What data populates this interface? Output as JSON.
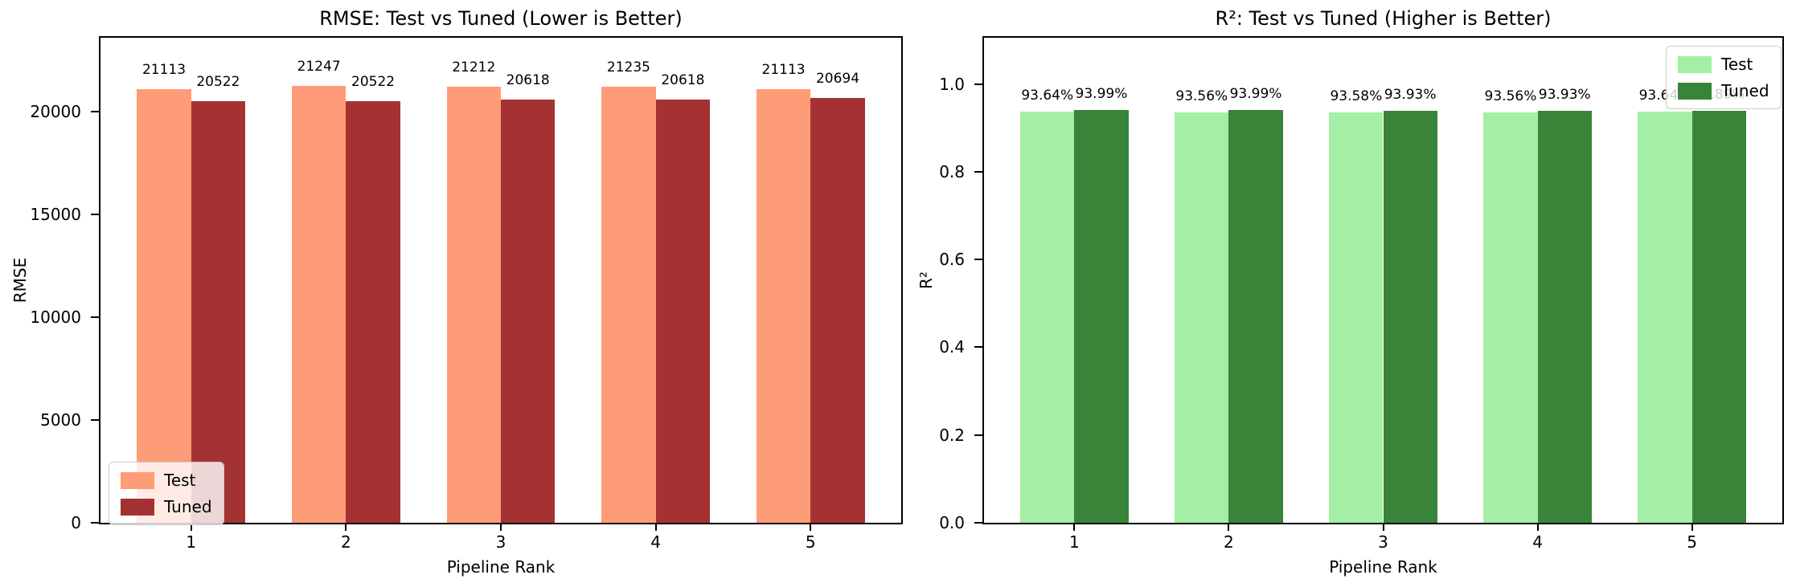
{
  "chart_data": [
    {
      "type": "bar",
      "title": "RMSE: Test vs Tuned (Lower is Better)",
      "xlabel": "Pipeline Rank",
      "ylabel": "RMSE",
      "categories": [
        "1",
        "2",
        "3",
        "4",
        "5"
      ],
      "series": [
        {
          "name": "Test",
          "color": "#ff9c78",
          "values": [
            21113,
            21247,
            21212,
            21235,
            21113
          ],
          "bar_labels": [
            "21113",
            "21247",
            "21212",
            "21235",
            "21113"
          ]
        },
        {
          "name": "Tuned",
          "color": "#a53232",
          "values": [
            20522,
            20522,
            20618,
            20618,
            20694
          ],
          "bar_labels": [
            "20522",
            "20522",
            "20618",
            "20618",
            "20694"
          ]
        }
      ],
      "yticks": {
        "values": [
          0,
          5000,
          10000,
          15000,
          20000
        ],
        "labels": [
          "0",
          "5000",
          "10000",
          "15000",
          "20000"
        ]
      },
      "ylim": [
        0,
        23612
      ],
      "xlim": [
        0.415,
        5.585
      ],
      "bar_width": 0.35,
      "grid": false,
      "legend": {
        "position": "lower left",
        "entries": [
          "Test",
          "Tuned"
        ]
      }
    },
    {
      "type": "bar",
      "title": "R²: Test vs Tuned (Higher is Better)",
      "xlabel": "Pipeline Rank",
      "ylabel": "R²",
      "categories": [
        "1",
        "2",
        "3",
        "4",
        "5"
      ],
      "series": [
        {
          "name": "Test",
          "color": "#a5eea5",
          "values": [
            0.9364,
            0.9356,
            0.9358,
            0.9356,
            0.9364
          ],
          "bar_labels": [
            "93.64%",
            "93.56%",
            "93.58%",
            "93.56%",
            "93.64%"
          ]
        },
        {
          "name": "Tuned",
          "color": "#388438",
          "values": [
            0.9399,
            0.9399,
            0.9393,
            0.9393,
            0.9389
          ],
          "bar_labels": [
            "93.99%",
            "93.99%",
            "93.93%",
            "93.93%",
            "93.89%"
          ]
        }
      ],
      "yticks": {
        "values": [
          0,
          0.2,
          0.4,
          0.6,
          0.8,
          1.0
        ],
        "labels": [
          "0.0",
          "0.2",
          "0.4",
          "0.6",
          "0.8",
          "1.0"
        ]
      },
      "ylim": [
        0,
        1.1055
      ],
      "xlim": [
        0.415,
        5.585
      ],
      "bar_width": 0.35,
      "grid": false,
      "legend": {
        "position": "upper right",
        "entries": [
          "Test",
          "Tuned"
        ]
      }
    }
  ]
}
